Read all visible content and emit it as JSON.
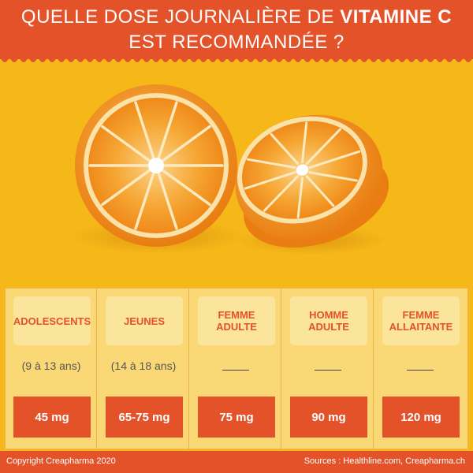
{
  "header": {
    "title_line1_prefix": "QUELLE DOSE JOURNALIÈRE DE ",
    "title_line1_strong": "VITAMINE C",
    "title_line2": "EST RECOMMANDÉE ?"
  },
  "colors": {
    "brand_orange": "#e4522a",
    "background_yellow": "#f6b719",
    "panel_yellow": "#fbd876"
  },
  "table": {
    "columns": [
      {
        "label": "ADOLESCENTS",
        "age": "(9 à 13 ans)",
        "value": "45 mg"
      },
      {
        "label": "JEUNES",
        "age": "(14 à 18 ans)",
        "value": "65-75 mg"
      },
      {
        "label": "FEMME\nADULTE",
        "age": "",
        "value": "75 mg"
      },
      {
        "label": "HOMME\nADULTE",
        "age": "",
        "value": "90 mg"
      },
      {
        "label": "FEMME\nALLAITANTE",
        "age": "",
        "value": "120 mg"
      }
    ]
  },
  "footer": {
    "copyright": "Copyright Creapharma 2020",
    "sources": "Sources : Healthline.com, Creapharma.ch"
  }
}
